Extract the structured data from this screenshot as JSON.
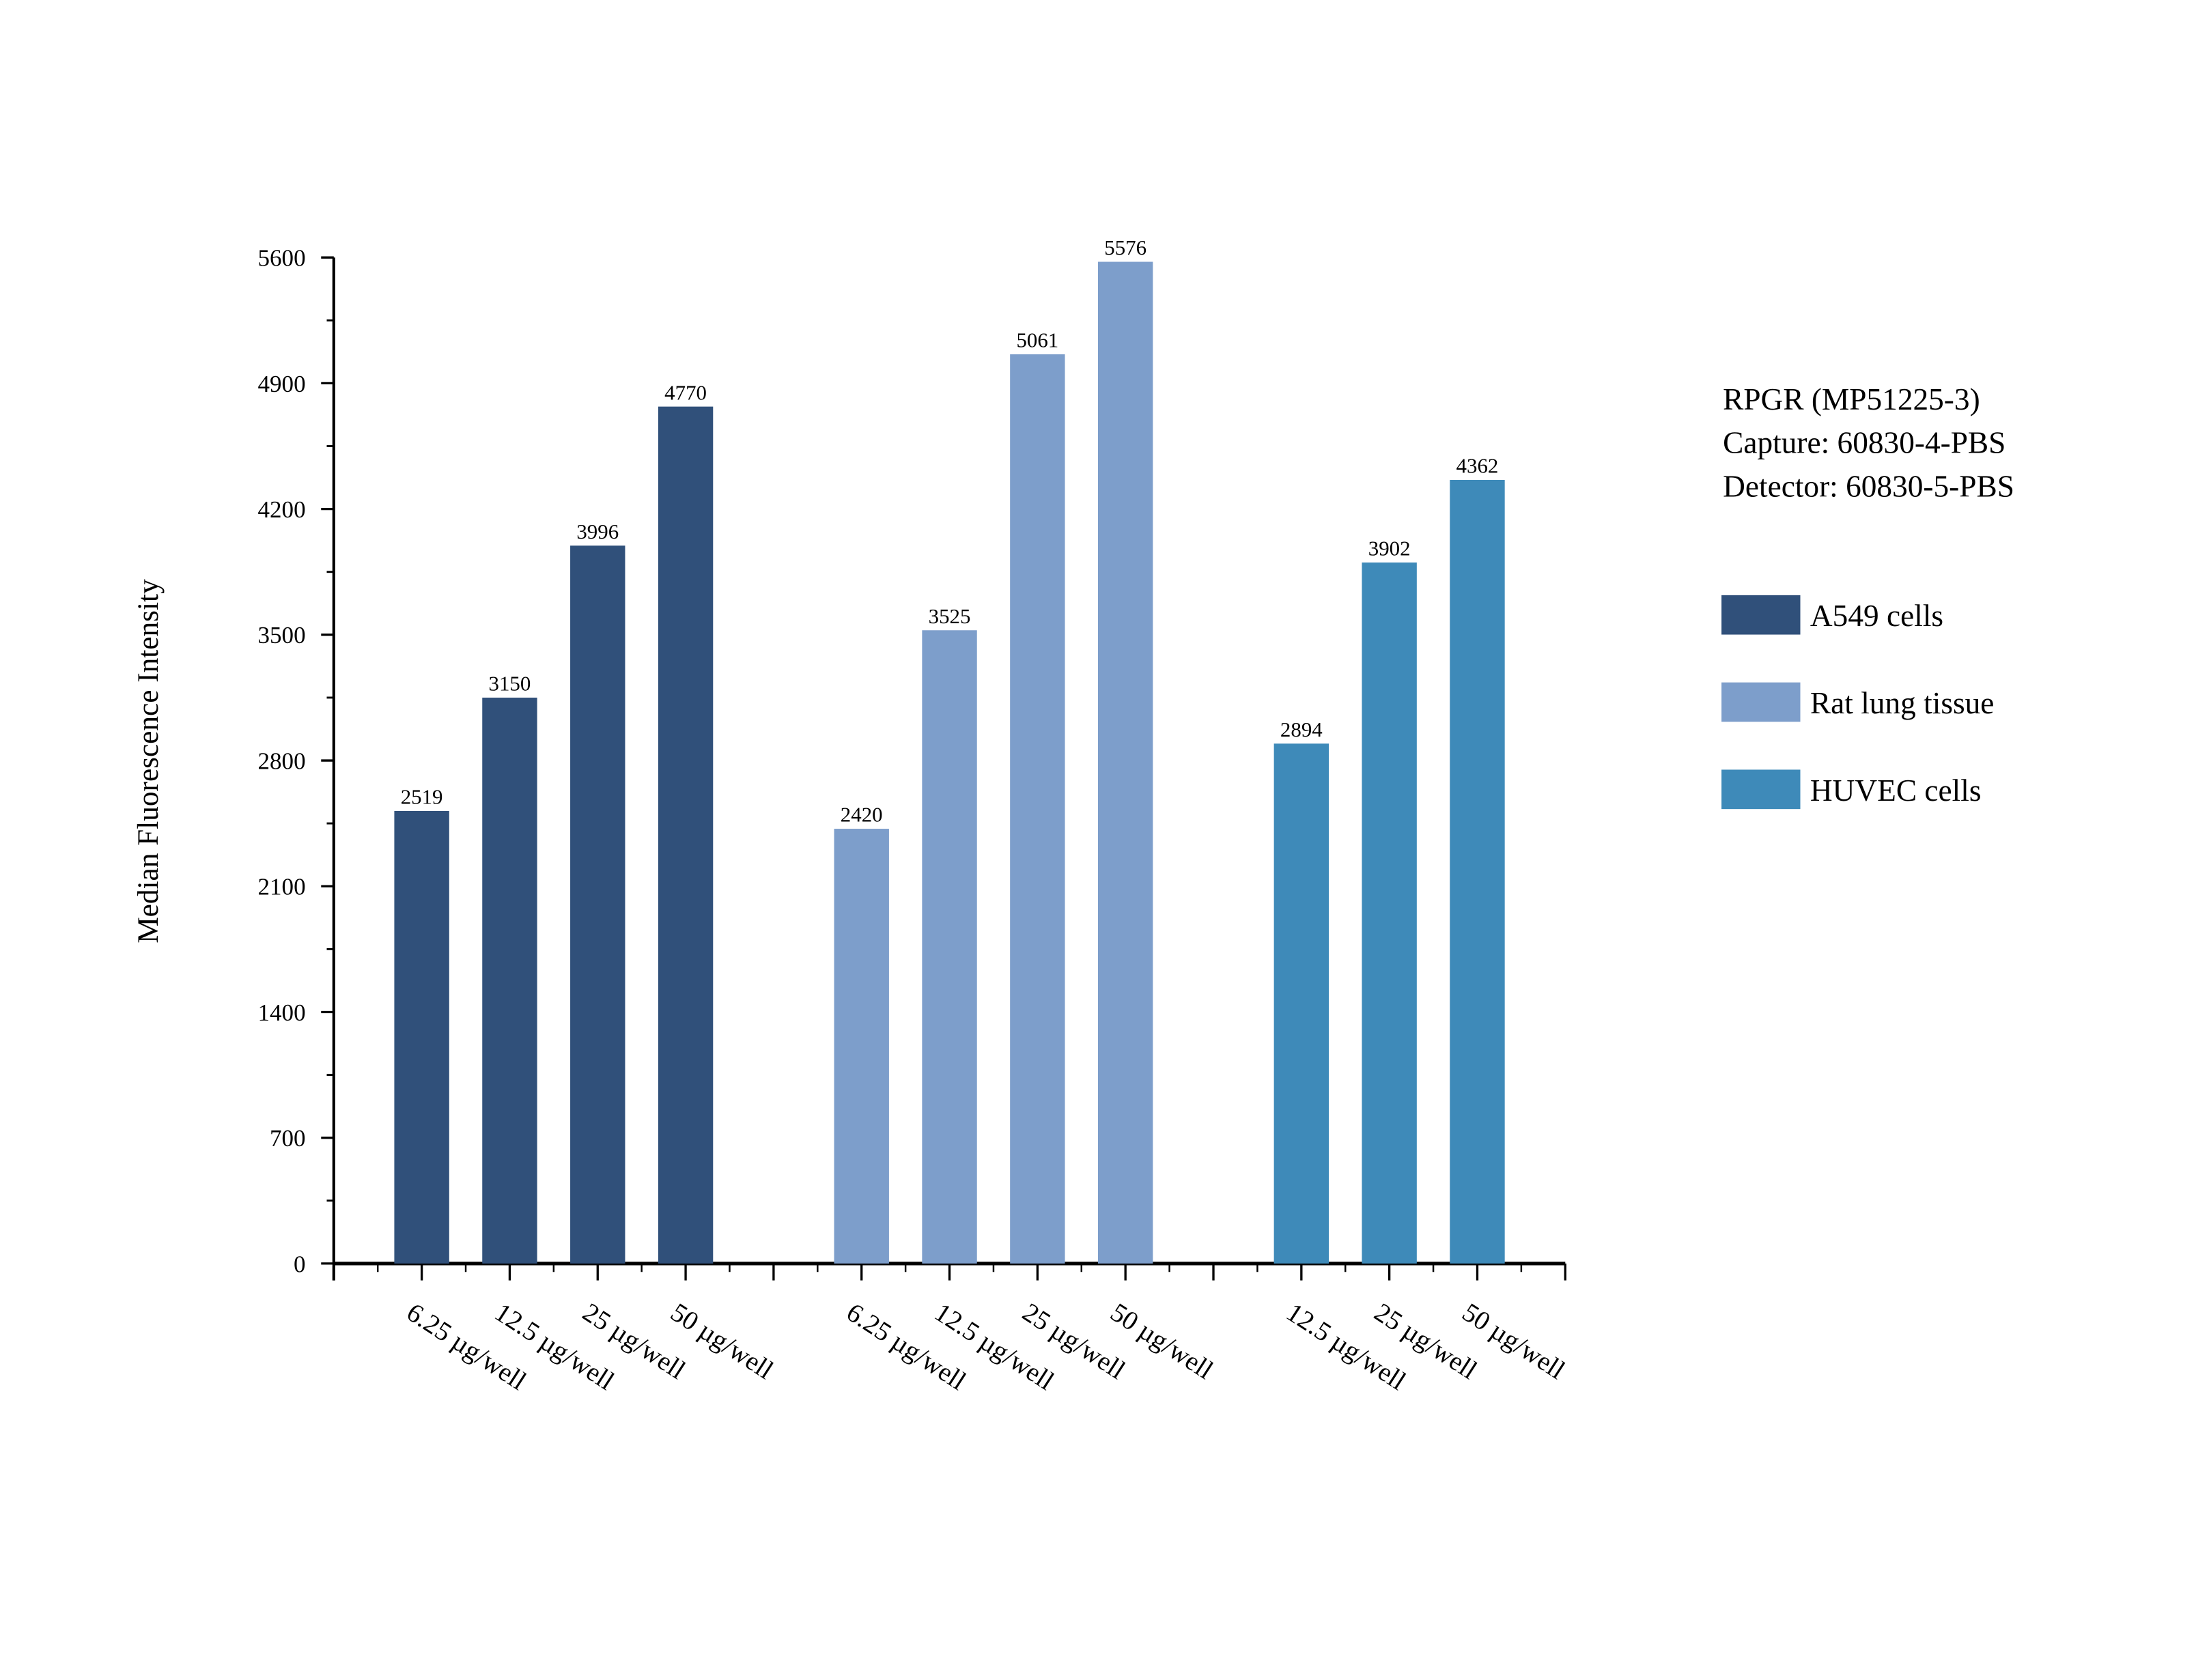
{
  "chart_data": {
    "type": "bar",
    "title": "",
    "xlabel": "",
    "ylabel": "Median Fluorescence Intensity",
    "ylim": [
      0,
      5600
    ],
    "yticks": [
      0,
      700,
      1400,
      2100,
      2800,
      3500,
      4200,
      4900,
      5600
    ],
    "grid": false,
    "legend_position": "right",
    "annotation_lines": [
      "RPGR (MP51225-3)",
      "Capture: 60830-4-PBS",
      "Detector: 60830-5-PBS"
    ],
    "series": [
      {
        "name": "A549 cells",
        "color": "#30507a",
        "slots": [
          1,
          2,
          3,
          4
        ],
        "categories": [
          "6.25 µg/well",
          "12.5 µg/well",
          "25 µg/well",
          "50 µg/well"
        ],
        "values": [
          2519,
          3150,
          3996,
          4770
        ]
      },
      {
        "name": "Rat lung tissue",
        "color": "#7d9ecb",
        "slots": [
          6,
          7,
          8,
          9
        ],
        "categories": [
          "6.25 µg/well",
          "12.5 µg/well",
          "25 µg/well",
          "50 µg/well"
        ],
        "values": [
          2420,
          3525,
          5061,
          5576
        ]
      },
      {
        "name": "HUVEC cells",
        "color": "#3e8ab9",
        "slots": [
          11,
          12,
          13
        ],
        "categories": [
          "12.5 µg/well",
          "25 µg/well",
          "50 µg/well"
        ],
        "values": [
          2894,
          3902,
          4362
        ]
      }
    ]
  }
}
